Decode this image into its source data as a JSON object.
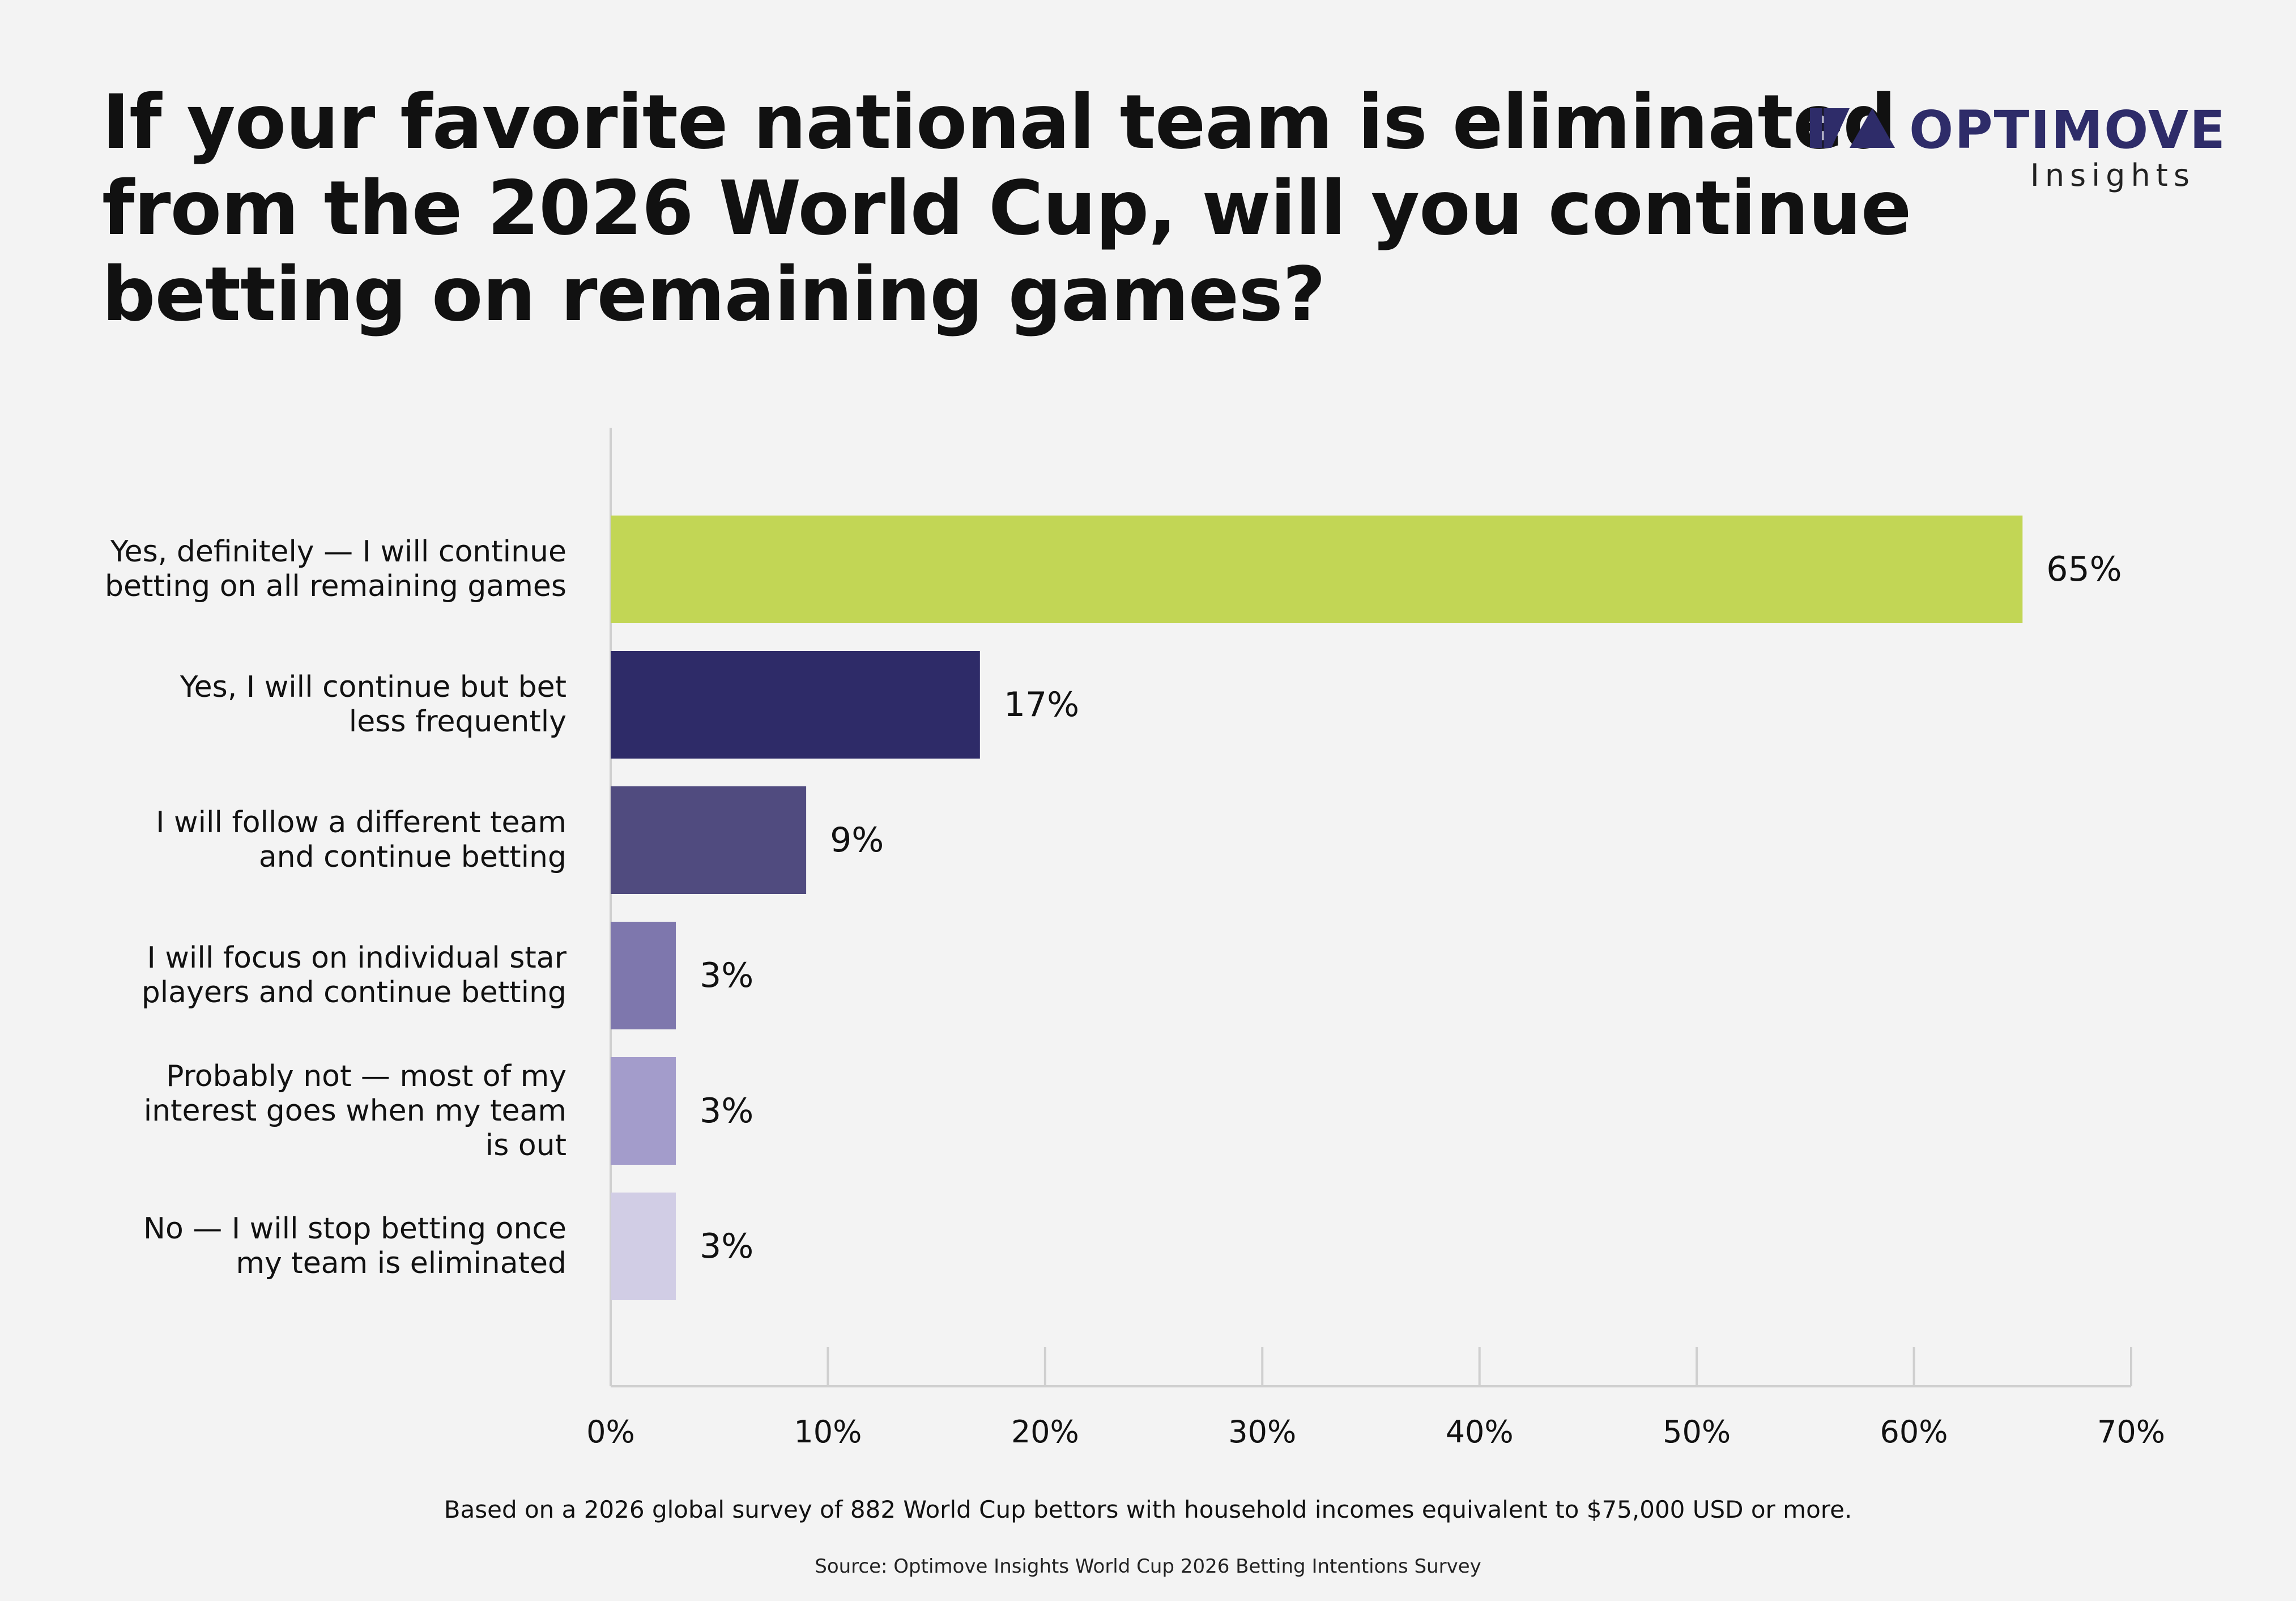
{
  "title_lines": [
    "If your favorite national team is eliminated",
    "from the 2026 World Cup, will you continue",
    "betting on remaining games?"
  ],
  "logo": {
    "wordmark": "OPTIMOVE",
    "subtitle": "Insights",
    "color": "#2e2c69"
  },
  "chart_data": {
    "type": "bar",
    "orientation": "horizontal",
    "title": "If your favorite national team is eliminated from the 2026 World Cup, will you continue betting on remaining games?",
    "categories": [
      [
        "Yes, definitely — I will continue",
        "betting on all remaining games"
      ],
      [
        "Yes, I will continue but bet",
        "less frequently"
      ],
      [
        "I will follow a different team",
        "and continue betting"
      ],
      [
        "I will focus on individual star",
        "players and continue betting"
      ],
      [
        "Probably not — most of my",
        "interest goes when my team",
        "is out"
      ],
      [
        "No — I will stop betting once",
        "my team is eliminated"
      ]
    ],
    "values": [
      65,
      17,
      9,
      3,
      3,
      3
    ],
    "value_labels": [
      "65%",
      "17%",
      "9%",
      "3%",
      "3%",
      "3%"
    ],
    "colors": [
      "#c2d655",
      "#2e2b68",
      "#504b7f",
      "#7e77ad",
      "#a39ccb",
      "#d1cde5"
    ],
    "xlim": [
      0,
      70
    ],
    "xticks": [
      0,
      10,
      20,
      30,
      40,
      50,
      60,
      70
    ],
    "xtick_labels": [
      "0%",
      "10%",
      "20%",
      "30%",
      "40%",
      "50%",
      "60%",
      "70%"
    ],
    "grid": false,
    "legend": "none"
  },
  "footnote": "Based on a 2026 global survey of 882 World Cup bettors with household incomes equivalent to $75,000 USD or more.",
  "source": "Source: Optimove Insights World Cup 2026 Betting Intentions Survey"
}
